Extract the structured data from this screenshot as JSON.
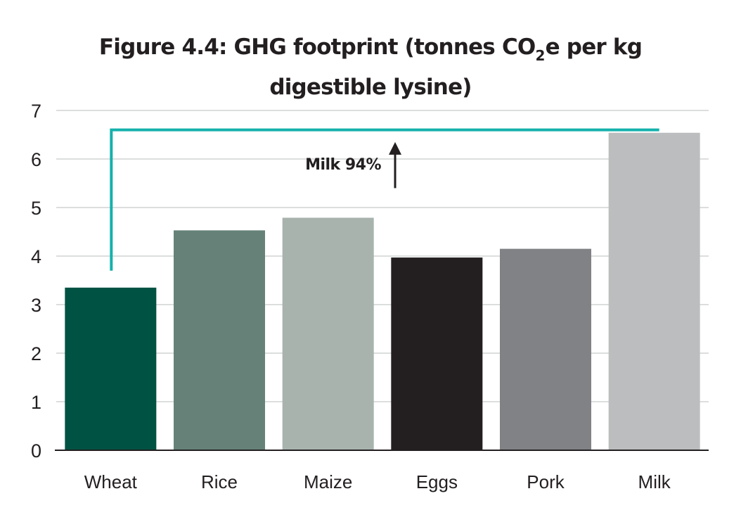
{
  "chart_data": {
    "type": "bar",
    "title": {
      "line1_pre": "Figure 4.4: GHG footprint (tonnes CO",
      "line1_sub": "2",
      "line1_post": "e per kg",
      "line2": "digestible lysine)"
    },
    "categories": [
      "Wheat",
      "Rice",
      "Maize",
      "Eggs",
      "Pork",
      "Milk"
    ],
    "values": [
      3.35,
      4.53,
      4.79,
      3.97,
      4.15,
      6.54
    ],
    "colors": [
      "#005243",
      "#668278",
      "#a8b3ae",
      "#231f20",
      "#818285",
      "#bcbdbe"
    ],
    "ylim": [
      0,
      7
    ],
    "yticks": [
      "0",
      "1",
      "2",
      "3",
      "4",
      "5",
      "6",
      "7"
    ],
    "grid": true,
    "xlabel": "",
    "ylabel": "",
    "annotation": {
      "text": "Milk 94%",
      "bracket_color": "#15b1ac",
      "bracket_level": 6.6,
      "from_category": "Wheat",
      "to_category": "Milk",
      "arrow": "up"
    }
  }
}
